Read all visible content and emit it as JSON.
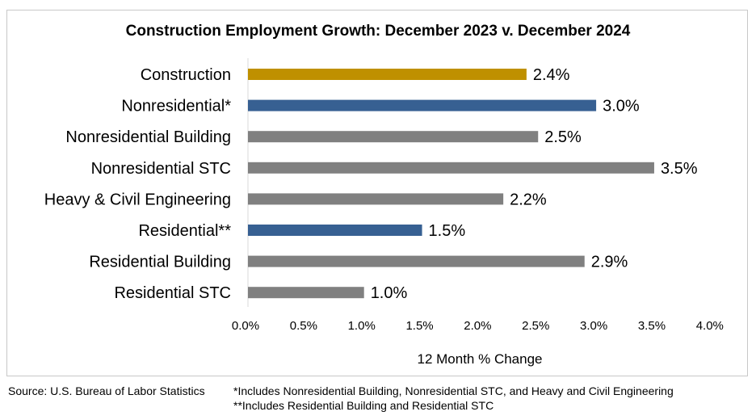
{
  "chart_data": {
    "type": "bar",
    "orientation": "horizontal",
    "title": "Construction Employment Growth: December 2023 v. December 2024",
    "xlabel": "12 Month % Change",
    "ylabel": "",
    "xlim": [
      0,
      4.0
    ],
    "grid": false,
    "categories": [
      "Construction",
      "Nonresidential*",
      "Nonresidential Building",
      "Nonresidential STC",
      "Heavy & Civil Engineering",
      "Residential**",
      "Residential Building",
      "Residential STC"
    ],
    "values": [
      2.4,
      3.0,
      2.5,
      3.5,
      2.2,
      1.5,
      2.9,
      1.0
    ],
    "data_labels": [
      "2.4%",
      "3.0%",
      "2.5%",
      "3.5%",
      "2.2%",
      "1.5%",
      "2.9%",
      "1.0%"
    ],
    "colors": [
      "#BF9000",
      "#376092",
      "#808080",
      "#808080",
      "#808080",
      "#376092",
      "#808080",
      "#808080"
    ],
    "xticks": [
      "0.0%",
      "0.5%",
      "1.0%",
      "1.5%",
      "2.0%",
      "2.5%",
      "3.0%",
      "3.5%",
      "4.0%"
    ]
  },
  "footer": {
    "source": "Source:  U.S. Bureau of Labor Statistics",
    "note1": "*Includes Nonresidential Building, Nonresidential STC, and Heavy and Civil Engineering",
    "note2": "**Includes Residential Building and Residential STC"
  }
}
